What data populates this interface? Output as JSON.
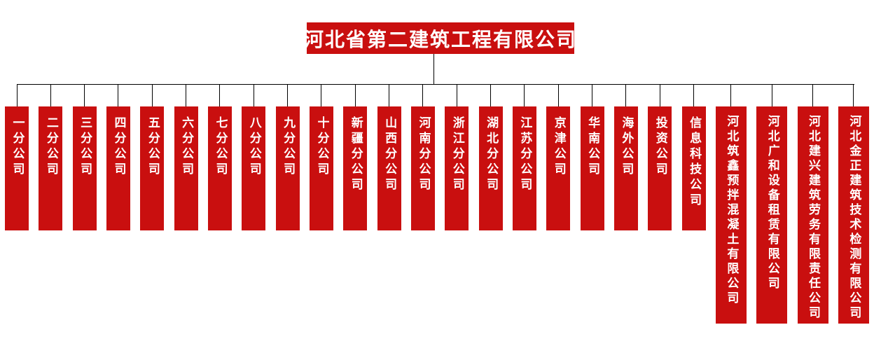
{
  "chart_title": "河北省第二建筑工程有限公司",
  "colors": {
    "accent_red": "#c90f0f",
    "text_on_red": "#ffffff",
    "connector_line": "#000000",
    "background": "#ffffff"
  },
  "root": {
    "label": "河北省第二建筑工程有限公司"
  },
  "org_units": [
    {
      "label": "一分公司",
      "tall": false
    },
    {
      "label": "二分公司",
      "tall": false
    },
    {
      "label": "三分公司",
      "tall": false
    },
    {
      "label": "四分公司",
      "tall": false
    },
    {
      "label": "五分公司",
      "tall": false
    },
    {
      "label": "六分公司",
      "tall": false
    },
    {
      "label": "七分公司",
      "tall": false
    },
    {
      "label": "八分公司",
      "tall": false
    },
    {
      "label": "九分公司",
      "tall": false
    },
    {
      "label": "十分公司",
      "tall": false
    },
    {
      "label": "新疆分公司",
      "tall": false
    },
    {
      "label": "山西分公司",
      "tall": false
    },
    {
      "label": "河南分公司",
      "tall": false
    },
    {
      "label": "浙江分公司",
      "tall": false
    },
    {
      "label": "湖北分公司",
      "tall": false
    },
    {
      "label": "江苏分公司",
      "tall": false
    },
    {
      "label": "京津公司",
      "tall": false
    },
    {
      "label": "华南公司",
      "tall": false
    },
    {
      "label": "海外公司",
      "tall": false
    },
    {
      "label": "投资公司",
      "tall": false
    },
    {
      "label": "信息科技公司",
      "tall": false
    },
    {
      "label": "河北筑鑫预拌混凝土有限公司",
      "tall": true
    },
    {
      "label": "河北广和设备租赁有限公司",
      "tall": true
    },
    {
      "label": "河北建兴建筑劳务有限责任公司",
      "tall": true
    },
    {
      "label": "河北金正建筑技术检测有限公司",
      "tall": true
    }
  ]
}
